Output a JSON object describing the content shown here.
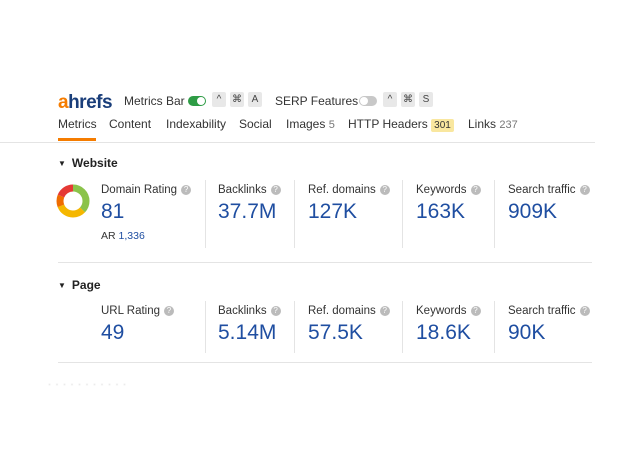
{
  "toolbar": {
    "logo_a": "a",
    "logo_rest": "hrefs",
    "metrics_bar_label": "Metrics Bar",
    "metrics_keys": [
      "^",
      "⌘",
      "A"
    ],
    "serp_features_label": "SERP Features",
    "serp_keys": [
      "^",
      "⌘",
      "S"
    ],
    "metrics_bar_on": true,
    "serp_features_on": false,
    "colors": {
      "accent": "#f57c00",
      "toggle_on": "#2e9c45",
      "value": "#1f4ea1"
    }
  },
  "tabs": [
    {
      "label": "Metrics",
      "active": true
    },
    {
      "label": "Content"
    },
    {
      "label": "Indexability"
    },
    {
      "label": "Social"
    },
    {
      "label": "Images",
      "count": "5"
    },
    {
      "label": "HTTP Headers",
      "badge": "301"
    },
    {
      "label": "Links",
      "count": "237"
    }
  ],
  "website": {
    "title": "Website",
    "domain_rating": {
      "label": "Domain Rating",
      "value": "81",
      "ar_label": "AR",
      "ar_value": "1,336"
    },
    "backlinks": {
      "label": "Backlinks",
      "value": "37.7M"
    },
    "ref_domains": {
      "label": "Ref. domains",
      "value": "127K"
    },
    "keywords": {
      "label": "Keywords",
      "value": "163K"
    },
    "search_traffic": {
      "label": "Search traffic",
      "value": "909K"
    }
  },
  "page": {
    "title": "Page",
    "url_rating": {
      "label": "URL Rating",
      "value": "49"
    },
    "backlinks": {
      "label": "Backlinks",
      "value": "5.14M"
    },
    "ref_domains": {
      "label": "Ref. domains",
      "value": "57.5K"
    },
    "keywords": {
      "label": "Keywords",
      "value": "18.6K"
    },
    "search_traffic": {
      "label": "Search traffic",
      "value": "90K"
    }
  },
  "footer_blurred": "· · · ·  · ·  · · · · ·"
}
